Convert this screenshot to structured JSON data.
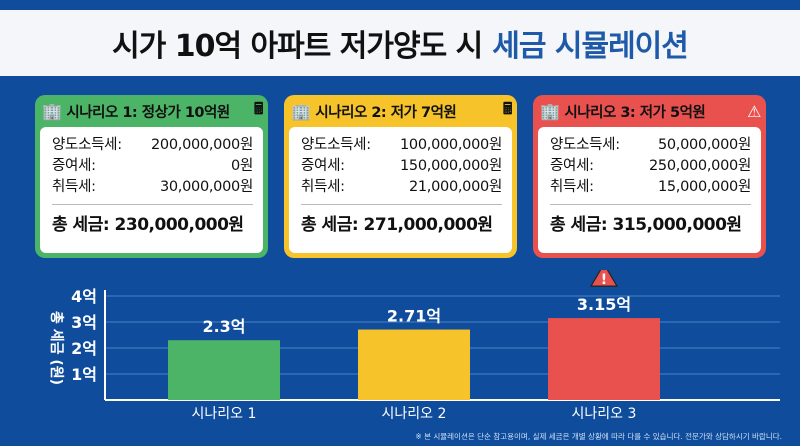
{
  "title": {
    "main": "시가 10억 아파트 저가양도 시",
    "accent": "세금 시뮬레이션"
  },
  "scenarios": [
    {
      "title": "시나리오 1: 정상가 10억원",
      "icon": "calculator-icon",
      "color": "#4cb466",
      "rows": [
        {
          "label": "양도소득세:",
          "value": "200,000,000원"
        },
        {
          "label": "증여세:",
          "value": "0원"
        },
        {
          "label": "취득세:",
          "value": "30,000,000원"
        }
      ],
      "total": "총 세금: 230,000,000원"
    },
    {
      "title": "시나리오 2: 저가 7억원",
      "icon": "calculator-icon",
      "color": "#f6c32a",
      "rows": [
        {
          "label": "양도소득세:",
          "value": "100,000,000원"
        },
        {
          "label": "증여세:",
          "value": "150,000,000원"
        },
        {
          "label": "취득세:",
          "value": "21,000,000원"
        }
      ],
      "total": "총 세금: 271,000,000원"
    },
    {
      "title": "시나리오 3: 저가 5억원",
      "icon": "warning-icon",
      "color": "#e9514f",
      "rows": [
        {
          "label": "양도소득세:",
          "value": "50,000,000원"
        },
        {
          "label": "증여세:",
          "value": "250,000,000원"
        },
        {
          "label": "취득세:",
          "value": "15,000,000원"
        }
      ],
      "total": "총 세금: 315,000,000원"
    }
  ],
  "chart_data": {
    "type": "bar",
    "categories": [
      "시나리오 1",
      "시나리오 2",
      "시나리오 3"
    ],
    "values": [
      2.3,
      2.71,
      3.15
    ],
    "labels": [
      "2.3억",
      "2.71억",
      "3.15억"
    ],
    "colors": [
      "#4cb466",
      "#f6c32a",
      "#e9514f"
    ],
    "ylabel": "총 세금 (원)",
    "yticks": [
      {
        "v": 1,
        "t": "1억"
      },
      {
        "v": 2,
        "t": "2억"
      },
      {
        "v": 3,
        "t": "3억"
      },
      {
        "v": 4,
        "t": "4억"
      }
    ],
    "ylim": [
      0,
      4
    ],
    "grid": true
  },
  "footnote": "※ 본 시뮬레이션은 단순 참고용이며, 실제 세금은 개별 상황에 따라 다를 수 있습니다. 전문가와 상담하시기 바랍니다."
}
